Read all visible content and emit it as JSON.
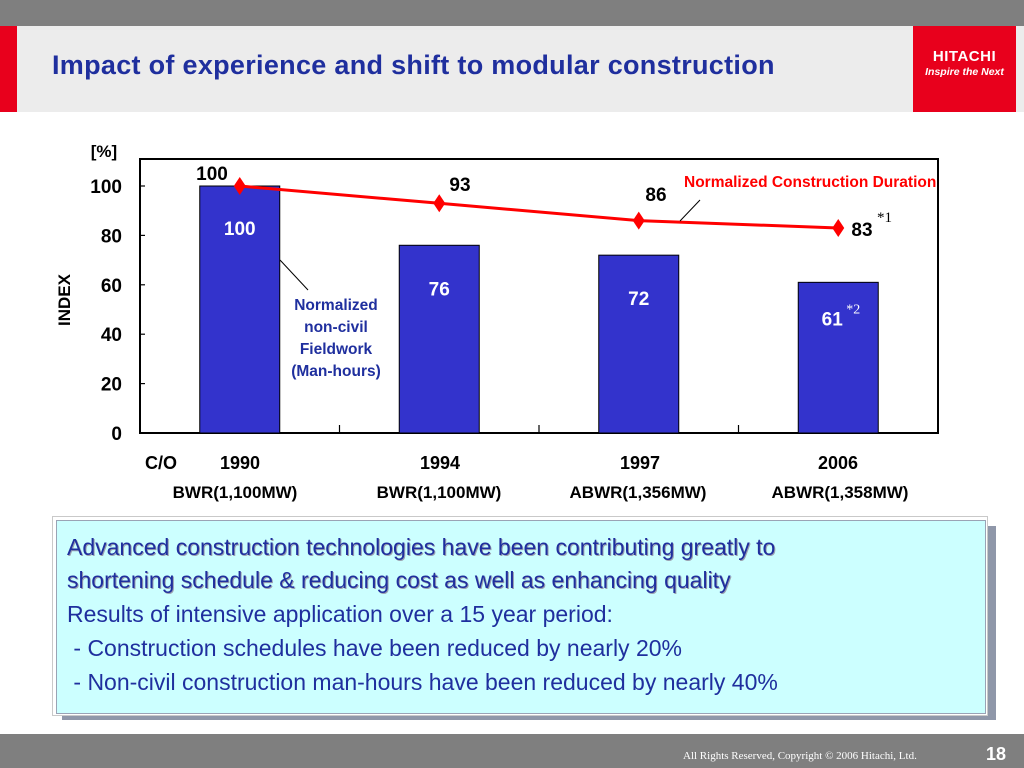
{
  "slide": {
    "title": "Impact of experience and shift to modular construction",
    "logo": {
      "name": "HITACHI",
      "tagline": "Inspire the Next"
    },
    "footer": {
      "copyright": "All Rights Reserved, Copyright © 2006 Hitachi, Ltd.",
      "page_number": "18"
    },
    "colors": {
      "title": "#1f2f9e",
      "accent_red": "#e8001c",
      "bar_fill": "#3333cc",
      "line": "#ff0000",
      "summary_bg": "#ccffff"
    }
  },
  "summary": {
    "headline": [
      "Advanced construction technologies have been contributing greatly to",
      "shortening schedule & reducing cost as well as enhancing quality"
    ],
    "lines": [
      "Results of intensive application over a 15 year period:",
      " - Construction schedules have been reduced by nearly 20%",
      " - Non-civil construction man-hours have been reduced by nearly 40%"
    ]
  },
  "chart_data": {
    "type": "bar",
    "xlabel": "",
    "ylabel": "INDEX",
    "y_unit_label": "[%]",
    "ylim": [
      0,
      110
    ],
    "yticks": [
      "0",
      "20",
      "40",
      "60",
      "80",
      "100"
    ],
    "x_prefix": "C/O",
    "categories": [
      "1990",
      "1994",
      "1997",
      "2006"
    ],
    "sublabels": [
      "BWR(1,100MW)",
      "BWR(1,100MW)",
      "ABWR(1,356MW)",
      "ABWR(1,358MW)"
    ],
    "series": [
      {
        "name": "Normalized non-civil Fieldwork (Man-hours)",
        "kind": "bar",
        "values": [
          100,
          76,
          72,
          61
        ],
        "labels": [
          "100",
          "76",
          "72",
          "61"
        ],
        "note_index": 3,
        "note": "*2",
        "color": "#3333cc"
      },
      {
        "name": "Normalized Construction Duration",
        "kind": "line",
        "values": [
          100,
          93,
          86,
          83
        ],
        "labels": [
          "100",
          "93",
          "86",
          "83"
        ],
        "note_index": 3,
        "note": "*1",
        "color": "#ff0000"
      }
    ],
    "bar_series_label": [
      "Normalized",
      "non-civil",
      "Fieldwork",
      "(Man-hours)"
    ],
    "grid": false
  }
}
